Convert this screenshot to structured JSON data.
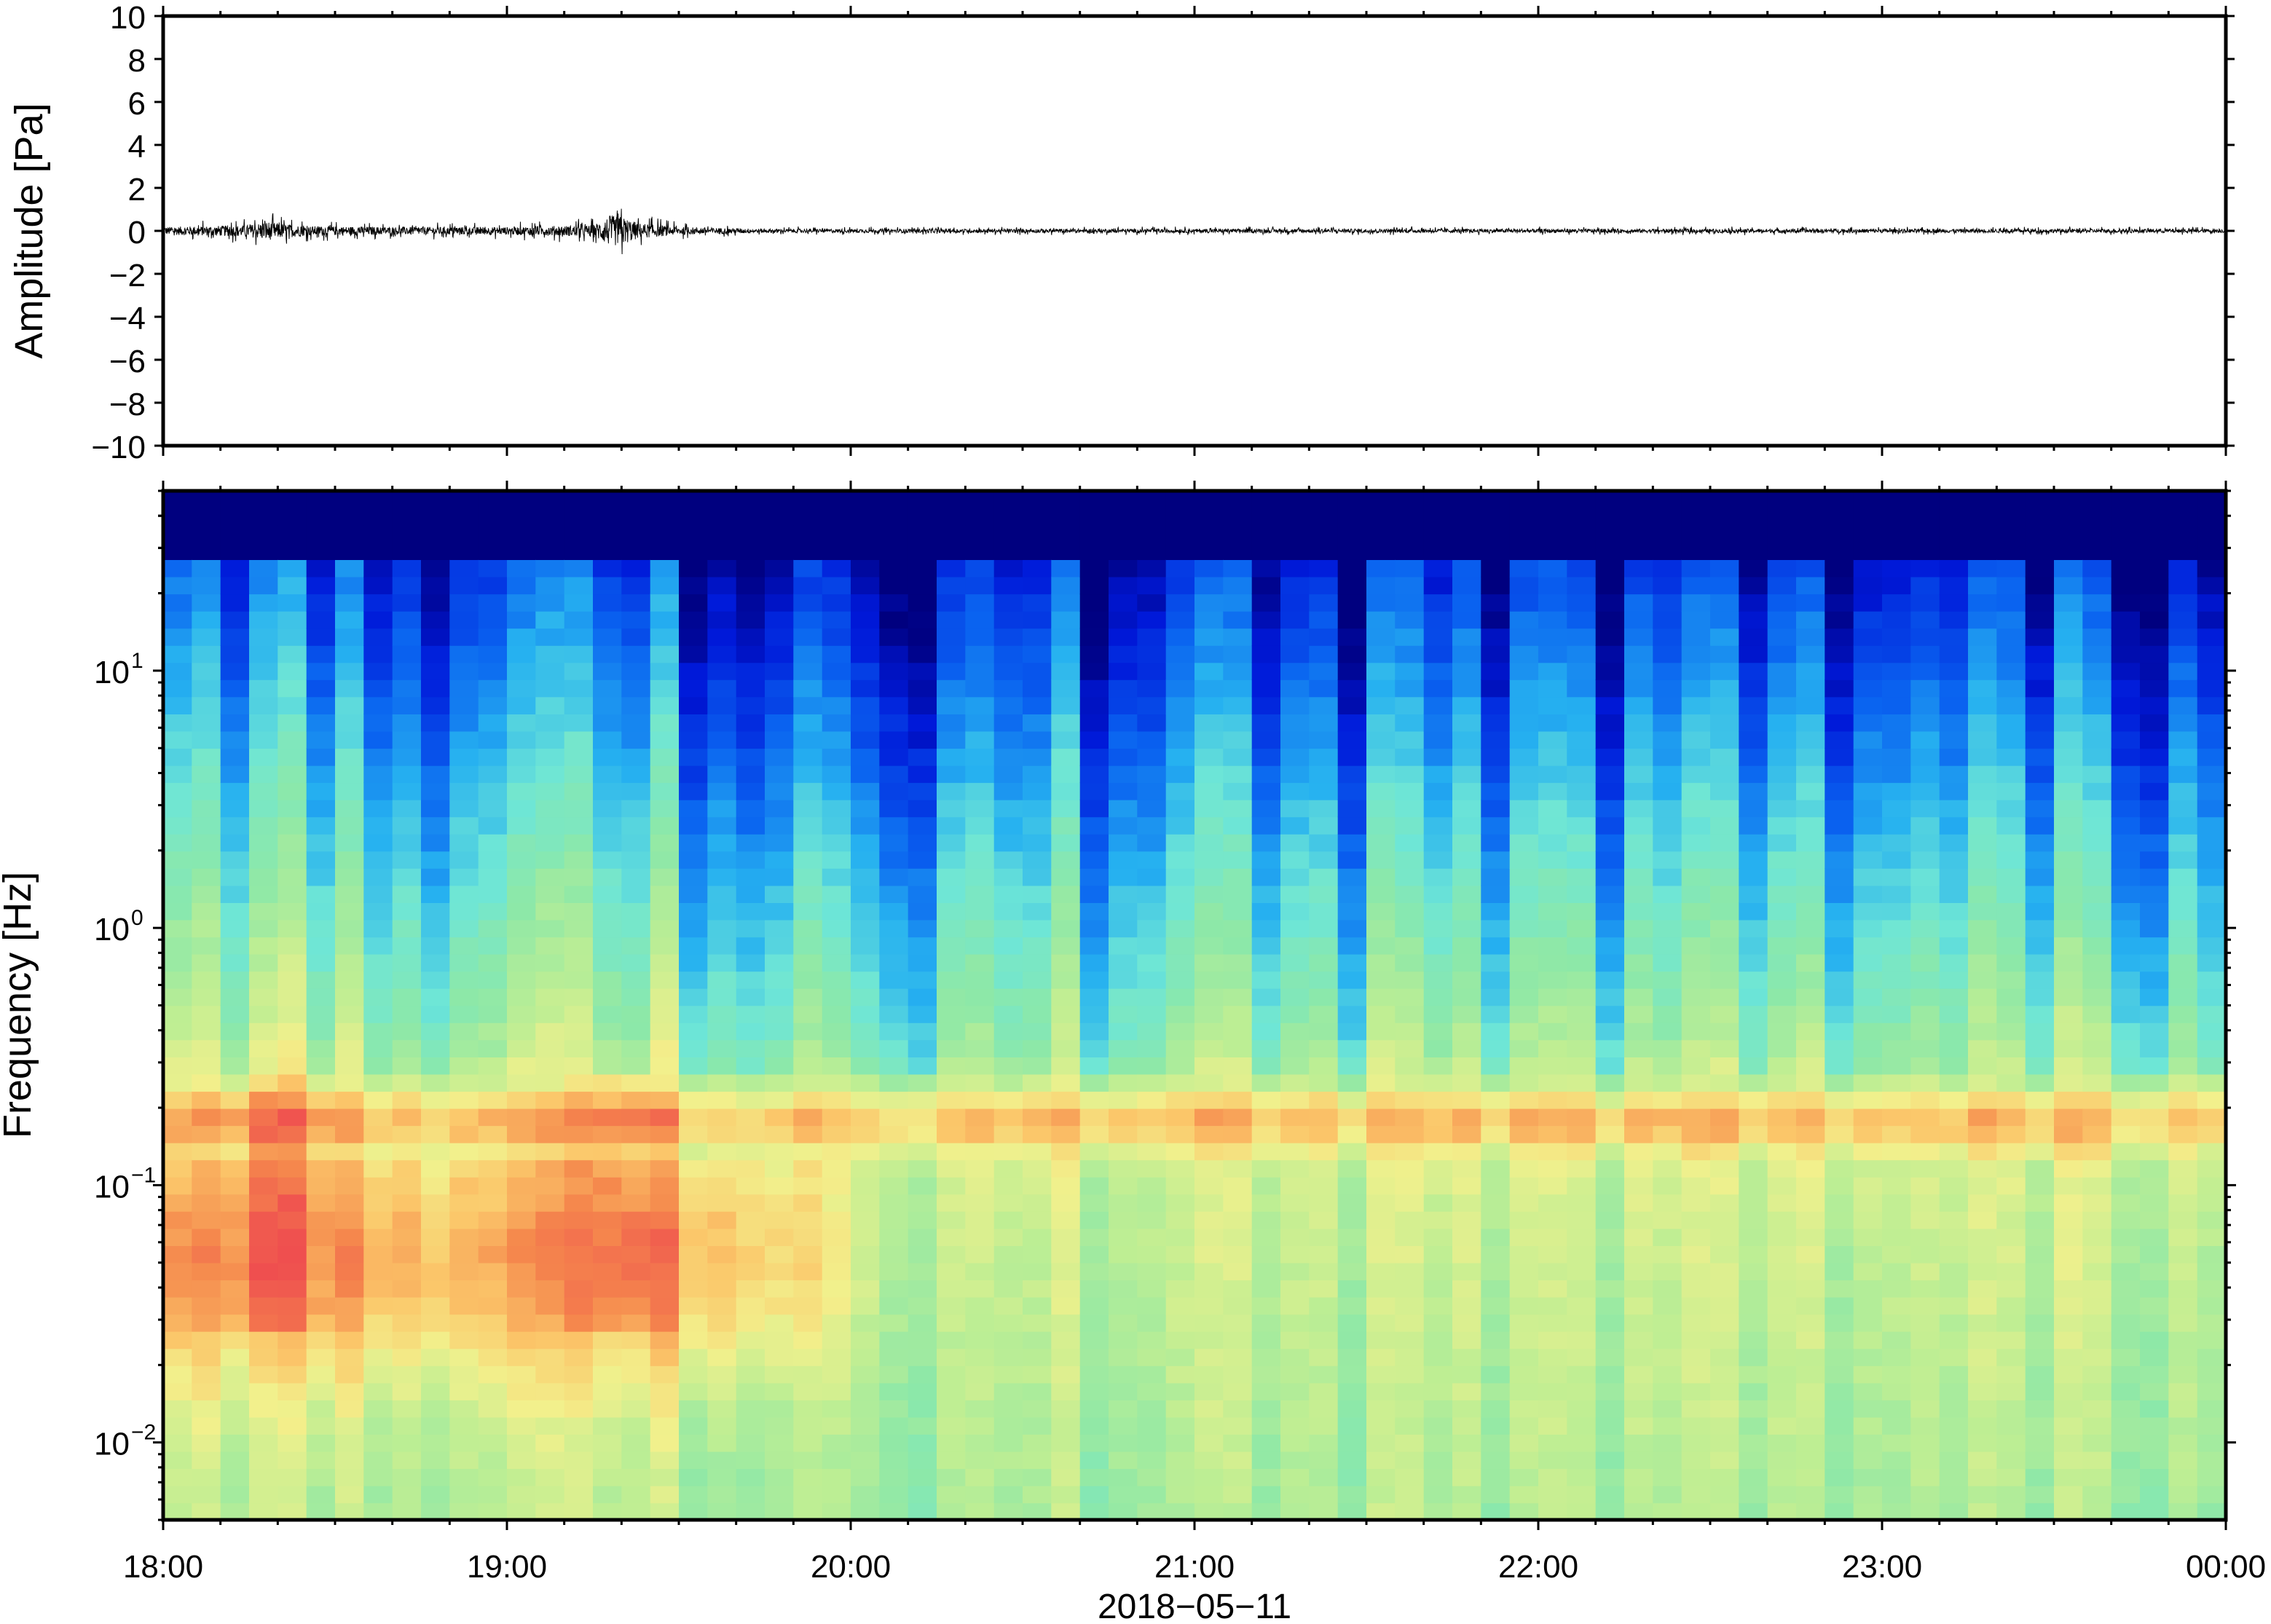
{
  "chart_data": [
    {
      "type": "line",
      "panel": "waveform",
      "ylabel": "Amplitude [Pa]",
      "ylim": [
        -10,
        10
      ],
      "ytick_labels": [
        "10",
        "8",
        "6",
        "4",
        "2",
        "0",
        "−2",
        "−4",
        "−6",
        "−8",
        "−10"
      ],
      "x_range": [
        "18:00",
        "00:00"
      ],
      "series": [
        {
          "x": [
            "18:00",
            "18:15",
            "18:18",
            "18:20",
            "18:25",
            "18:40",
            "19:00",
            "19:15",
            "19:18",
            "19:20",
            "19:23",
            "19:30",
            "19:45",
            "20:00",
            "21:00",
            "22:00",
            "23:00",
            "00:00"
          ],
          "values": [
            0.4,
            0.6,
            1.0,
            0.8,
            0.5,
            0.4,
            0.4,
            0.6,
            1.6,
            1.5,
            0.8,
            0.4,
            0.2,
            0.2,
            0.2,
            0.2,
            0.2,
            0.2
          ]
        }
      ]
    },
    {
      "type": "heatmap",
      "panel": "spectrogram",
      "ylabel": "Frequency [Hz]",
      "xlabel": "2018−05−11",
      "y_scale": "log",
      "ylim": [
        0.005,
        50
      ],
      "ytick_labels": [
        {
          "value": 10,
          "mantissa": "10",
          "exp": "1"
        },
        {
          "value": 1,
          "mantissa": "10",
          "exp": "0"
        },
        {
          "value": 0.1,
          "mantissa": "10",
          "exp": "−1"
        },
        {
          "value": 0.01,
          "mantissa": "10",
          "exp": "−2"
        }
      ],
      "xtick_labels": [
        "18:00",
        "19:00",
        "20:00",
        "21:00",
        "22:00",
        "23:00",
        "00:00"
      ],
      "colormap": [
        "#00007f",
        "#0019d9",
        "#0a63f0",
        "#26b1f0",
        "#6ee6d6",
        "#8de8a8",
        "#bfee93",
        "#f2f08c",
        "#fbc76a",
        "#f5894d",
        "#ef4f4f"
      ],
      "features": {
        "microbarom_band_hz": 0.18,
        "strong_low_freq_activity": [
          "18:00",
          "19:40"
        ],
        "transient_events": [
          "18:20",
          "19:20"
        ]
      }
    }
  ]
}
